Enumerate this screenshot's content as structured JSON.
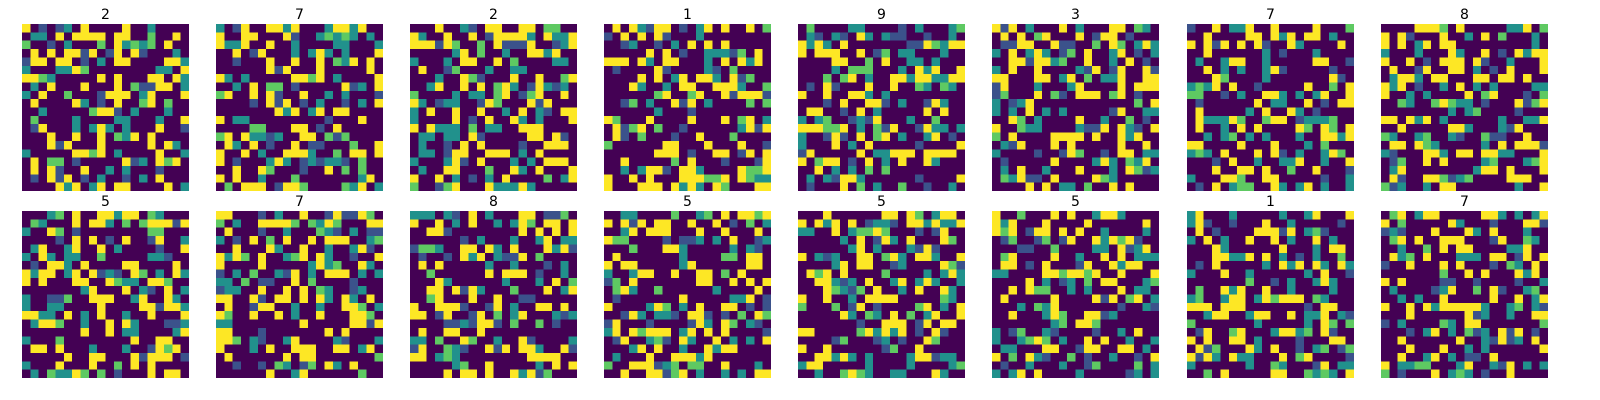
{
  "figure": {
    "layout": {
      "rows": 2,
      "columns": 8
    },
    "grid_size": [
      20,
      20
    ],
    "colormap": "viridis",
    "axes_visible": false,
    "panels": [
      {
        "title": "2"
      },
      {
        "title": "7"
      },
      {
        "title": "2"
      },
      {
        "title": "1"
      },
      {
        "title": "9"
      },
      {
        "title": "3"
      },
      {
        "title": "7"
      },
      {
        "title": "8"
      },
      {
        "title": "5"
      },
      {
        "title": "7"
      },
      {
        "title": "8"
      },
      {
        "title": "5"
      },
      {
        "title": "5"
      },
      {
        "title": "5"
      },
      {
        "title": "1"
      },
      {
        "title": "7"
      }
    ],
    "palette": [
      "#440154",
      "#3b528b",
      "#21918c",
      "#5ec962",
      "#fde725"
    ],
    "value_distribution": [
      0.55,
      0.06,
      0.12,
      0.05,
      0.22
    ]
  }
}
